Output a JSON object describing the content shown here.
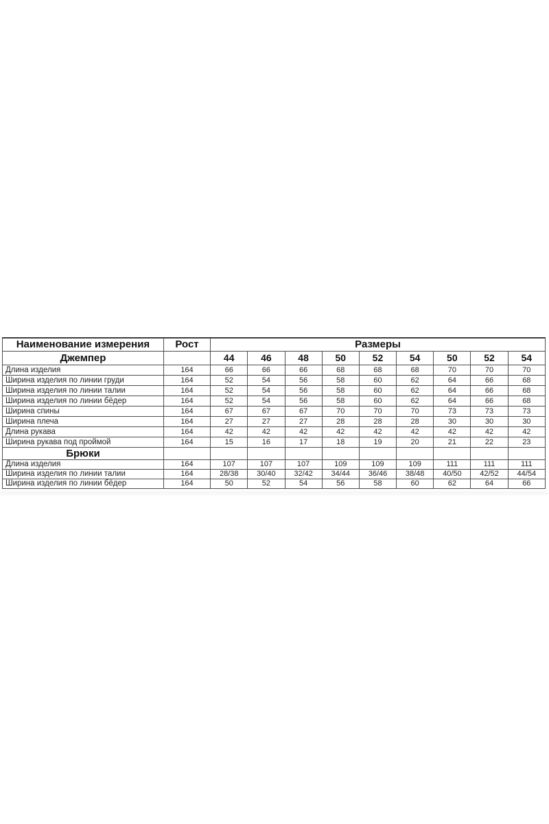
{
  "table": {
    "border_color": "#4d4d4d",
    "background_color": "#ffffff",
    "header": {
      "measurement_label": "Наименование измерения",
      "height_label": "Рост",
      "sizes_label": "Размеры"
    },
    "sections": [
      {
        "title": "Джемпер",
        "height_cell": "",
        "sizes": [
          "44",
          "46",
          "48",
          "50",
          "52",
          "54",
          "50",
          "52",
          "54"
        ],
        "rows": [
          {
            "label": "Длина изделия",
            "height": "164",
            "values": [
              "66",
              "66",
              "66",
              "68",
              "68",
              "68",
              "70",
              "70",
              "70"
            ]
          },
          {
            "label": "Ширина изделия по линии груди",
            "height": "164",
            "values": [
              "52",
              "54",
              "56",
              "58",
              "60",
              "62",
              "64",
              "66",
              "68"
            ]
          },
          {
            "label": "Ширина изделия по линии талии",
            "height": "164",
            "values": [
              "52",
              "54",
              "56",
              "58",
              "60",
              "62",
              "64",
              "66",
              "68"
            ]
          },
          {
            "label": "Ширина изделия по линии бёдер",
            "height": "164",
            "values": [
              "52",
              "54",
              "56",
              "58",
              "60",
              "62",
              "64",
              "66",
              "68"
            ]
          },
          {
            "label": "Ширина спины",
            "height": "164",
            "values": [
              "67",
              "67",
              "67",
              "70",
              "70",
              "70",
              "73",
              "73",
              "73"
            ]
          },
          {
            "label": "Ширина плеча",
            "height": "164",
            "values": [
              "27",
              "27",
              "27",
              "28",
              "28",
              "28",
              "30",
              "30",
              "30"
            ]
          },
          {
            "label": "Длина рукава",
            "height": "164",
            "values": [
              "42",
              "42",
              "42",
              "42",
              "42",
              "42",
              "42",
              "42",
              "42"
            ]
          },
          {
            "label": "Ширина рукава под проймой",
            "height": "164",
            "values": [
              "15",
              "16",
              "17",
              "18",
              "19",
              "20",
              "21",
              "22",
              "23"
            ]
          }
        ]
      },
      {
        "title": "Брюки",
        "height_cell": "",
        "sizes": [
          "",
          "",
          "",
          "",
          "",
          "",
          "",
          "",
          ""
        ],
        "rows": [
          {
            "label": "Длина изделия",
            "height": "164",
            "values": [
              "107",
              "107",
              "107",
              "109",
              "109",
              "109",
              "111",
              "111",
              "111"
            ]
          },
          {
            "label": "Ширина изделия по линии талии",
            "height": "164",
            "values": [
              "28/38",
              "30/40",
              "32/42",
              "34/44",
              "36/46",
              "38/48",
              "40/50",
              "42/52",
              "44/54"
            ]
          },
          {
            "label": "Ширина изделия по линии бёдер",
            "height": "164",
            "values": [
              "50",
              "52",
              "54",
              "56",
              "58",
              "60",
              "62",
              "64",
              "66"
            ]
          }
        ]
      }
    ]
  }
}
